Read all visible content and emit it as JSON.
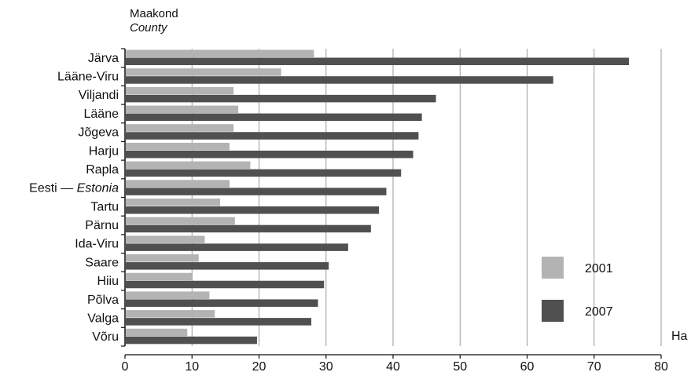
{
  "header": {
    "line1": "Maakond",
    "line2": "County"
  },
  "unit": "Ha",
  "chart_data": {
    "type": "bar",
    "orientation": "horizontal",
    "categories": [
      {
        "main": "Järva",
        "italic": ""
      },
      {
        "main": "Lääne-Viru",
        "italic": ""
      },
      {
        "main": "Viljandi",
        "italic": ""
      },
      {
        "main": "Lääne",
        "italic": ""
      },
      {
        "main": "Jõgeva",
        "italic": ""
      },
      {
        "main": "Harju",
        "italic": ""
      },
      {
        "main": "Rapla",
        "italic": ""
      },
      {
        "main": "Eesti — ",
        "italic": "Estonia"
      },
      {
        "main": "Tartu",
        "italic": ""
      },
      {
        "main": "Pärnu",
        "italic": ""
      },
      {
        "main": "Ida-Viru",
        "italic": ""
      },
      {
        "main": "Saare",
        "italic": ""
      },
      {
        "main": "Hiiu",
        "italic": ""
      },
      {
        "main": "Põlva",
        "italic": ""
      },
      {
        "main": "Valga",
        "italic": ""
      },
      {
        "main": "Võru",
        "italic": ""
      }
    ],
    "series": [
      {
        "name": "2001",
        "color": "#b3b3b3",
        "values": [
          28.2,
          23.3,
          16.2,
          16.9,
          16.2,
          15.6,
          18.7,
          15.6,
          14.2,
          16.4,
          11.9,
          11.0,
          10.1,
          12.6,
          13.4,
          9.3
        ]
      },
      {
        "name": "2007",
        "color": "#505050",
        "values": [
          75.2,
          63.9,
          46.4,
          44.3,
          43.8,
          43.0,
          41.2,
          39.0,
          37.9,
          36.7,
          33.3,
          30.4,
          29.7,
          28.8,
          27.8,
          19.7
        ]
      }
    ],
    "xlim": [
      0,
      80
    ],
    "xticks": [
      0,
      10,
      20,
      30,
      40,
      50,
      60,
      70,
      80
    ],
    "grid": true,
    "legend_position": "bottom-right"
  }
}
